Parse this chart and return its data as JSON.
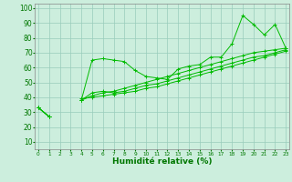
{
  "x": [
    0,
    1,
    2,
    3,
    4,
    5,
    6,
    7,
    8,
    9,
    10,
    11,
    12,
    13,
    14,
    15,
    16,
    17,
    18,
    19,
    20,
    21,
    22,
    23
  ],
  "line1": [
    33,
    27,
    null,
    null,
    38,
    65,
    66,
    65,
    64,
    58,
    54,
    53,
    52,
    59,
    61,
    62,
    67,
    67,
    76,
    95,
    89,
    82,
    89,
    73
  ],
  "line2": [
    33,
    27,
    null,
    null,
    38,
    43,
    44,
    43,
    44,
    46,
    48,
    49,
    51,
    53,
    55,
    57,
    59,
    61,
    63,
    65,
    67,
    68,
    70,
    72
  ],
  "line3": [
    33,
    27,
    null,
    null,
    39,
    40,
    41,
    42,
    43,
    44,
    46,
    47,
    49,
    51,
    53,
    55,
    57,
    59,
    61,
    63,
    65,
    67,
    69,
    71
  ],
  "line4": [
    33,
    27,
    null,
    null,
    38,
    41,
    43,
    44,
    46,
    48,
    50,
    52,
    54,
    56,
    58,
    60,
    62,
    64,
    66,
    68,
    70,
    71,
    72,
    73
  ],
  "line_color": "#00bb00",
  "bg_color": "#cceedd",
  "grid_color": "#99ccbb",
  "xlabel": "Humidité relative (%)",
  "yticks": [
    10,
    20,
    30,
    40,
    50,
    60,
    70,
    80,
    90,
    100
  ],
  "xticks": [
    0,
    1,
    2,
    3,
    4,
    5,
    6,
    7,
    8,
    9,
    10,
    11,
    12,
    13,
    14,
    15,
    16,
    17,
    18,
    19,
    20,
    21,
    22,
    23
  ],
  "ylim": [
    5,
    103
  ],
  "xlim": [
    -0.3,
    23.3
  ]
}
